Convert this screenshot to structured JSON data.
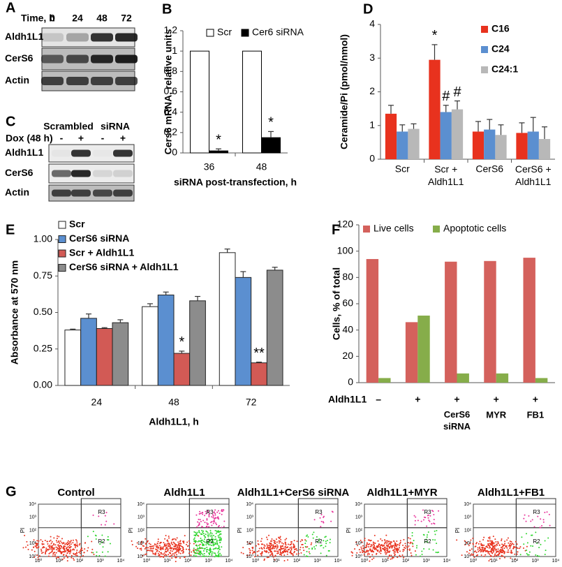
{
  "panels": {
    "A": {
      "letter": "A",
      "header": "Time, h",
      "columns": [
        "0",
        "24",
        "48",
        "72"
      ],
      "rows": [
        "Aldh1L1",
        "CerS6",
        "Actin"
      ]
    },
    "C": {
      "letter": "C",
      "groups": [
        "Scrambled",
        "siRNA"
      ],
      "treatment": "Dox (48 h)",
      "signs": [
        "-",
        "+",
        "-",
        "+"
      ],
      "rows": [
        "Aldh1L1",
        "CerS6",
        "Actin"
      ]
    },
    "G": {
      "letter": "G",
      "titles": [
        "Control",
        "Aldh1L1",
        "Aldh1L1+CerS6 siRNA",
        "Aldh1L1+MYR",
        "Aldh1L1+FB1"
      ],
      "y_label": "PI",
      "x_label": "AnnexinV-FITC",
      "gates": [
        "R3",
        "R2"
      ],
      "ticks": [
        "10⁰",
        "10¹",
        "10²",
        "10³",
        "10⁴"
      ]
    }
  },
  "chart_data": [
    {
      "type": "bar",
      "letter": "B",
      "y_label": "Cers6 mRNA, relative units",
      "x_label": "siRNA post-transfection, h",
      "categories": [
        "36",
        "48"
      ],
      "series": [
        {
          "name": "Scr",
          "color": "#ffffff",
          "values": [
            1,
            1
          ]
        },
        {
          "name": "Cer6 siRNA",
          "color": "#000000",
          "values": [
            0.02,
            0.15
          ],
          "errors": [
            0.02,
            0.06
          ],
          "annotations": [
            "*",
            "*"
          ]
        }
      ],
      "ylim": [
        0,
        1.2
      ],
      "yticks": [
        0,
        0.2,
        0.4,
        0.6,
        0.8,
        1,
        1.2
      ]
    },
    {
      "type": "bar",
      "letter": "D",
      "y_label": "Ceramide/Pi (pmol/nmol)",
      "categories": [
        "Scr",
        "Scr + Aldh1L1",
        "CerS6",
        "CerS6 + Aldh1L1"
      ],
      "series": [
        {
          "name": "C16",
          "color": "#e8321e",
          "values": [
            1.35,
            2.95,
            0.82,
            0.78
          ],
          "errors": [
            0.25,
            0.45,
            0.3,
            0.3
          ],
          "annotations": [
            null,
            "*",
            null,
            null
          ]
        },
        {
          "name": "C24",
          "color": "#5b8fd0",
          "values": [
            0.82,
            1.4,
            0.88,
            0.82
          ],
          "errors": [
            0.2,
            0.2,
            0.3,
            0.42
          ],
          "annotations": [
            null,
            "#",
            null,
            null
          ]
        },
        {
          "name": "C24:1",
          "color": "#b8b8b8",
          "values": [
            0.9,
            1.48,
            0.72,
            0.6
          ],
          "errors": [
            0.15,
            0.25,
            0.3,
            0.36
          ],
          "annotations": [
            null,
            "#",
            null,
            null
          ]
        }
      ],
      "ylim": [
        0,
        4
      ],
      "yticks": [
        0,
        1,
        2,
        3,
        4
      ]
    },
    {
      "type": "bar",
      "letter": "E",
      "y_label": "Absorbance at 570 nm",
      "x_label": "Aldh1L1, h",
      "categories": [
        "24",
        "48",
        "72"
      ],
      "series": [
        {
          "name": "Scr",
          "color": "#ffffff",
          "values": [
            0.38,
            0.54,
            0.91
          ],
          "errors": [
            0.006,
            0.02,
            0.025
          ]
        },
        {
          "name": "CerS6 siRNA",
          "color": "#5b8fd0",
          "values": [
            0.46,
            0.62,
            0.74
          ],
          "errors": [
            0.03,
            0.02,
            0.04
          ]
        },
        {
          "name": "Scr + Aldh1L1",
          "color": "#d25a55",
          "values": [
            0.39,
            0.22,
            0.155
          ],
          "errors": [
            0.006,
            0.015,
            0.005
          ],
          "annotations": [
            null,
            "*",
            "**"
          ]
        },
        {
          "name": "CerS6 siRNA + Aldh1L1",
          "color": "#8c8c8c",
          "values": [
            0.43,
            0.58,
            0.79
          ],
          "errors": [
            0.02,
            0.03,
            0.02
          ]
        }
      ],
      "ylim": [
        0,
        1
      ],
      "yticks": [
        {
          "value": 0,
          "label": "0.00"
        },
        {
          "value": 0.25,
          "label": "0.25"
        },
        {
          "value": 0.5,
          "label": "0.50"
        },
        {
          "value": 0.75,
          "label": "0.75"
        },
        {
          "value": 1,
          "label": "1.00"
        }
      ]
    },
    {
      "type": "bar",
      "letter": "F",
      "y_label": "Cells, % of total",
      "row_label": "Aldh1L1",
      "categories": [
        "–",
        "+",
        "+",
        "+",
        "+"
      ],
      "treatments": [
        null,
        null,
        "CerS6 siRNA",
        "MYR",
        "FB1"
      ],
      "series": [
        {
          "name": "Live cells",
          "color": "#d4615c",
          "values": [
            94,
            46,
            92,
            92.5,
            95
          ]
        },
        {
          "name": "Apoptotic cells",
          "color": "#86ad4a",
          "values": [
            3.5,
            51,
            7,
            7,
            3.5
          ]
        }
      ],
      "ylim": [
        0,
        120
      ],
      "yticks": [
        0,
        20,
        40,
        60,
        80,
        100,
        120
      ]
    }
  ]
}
